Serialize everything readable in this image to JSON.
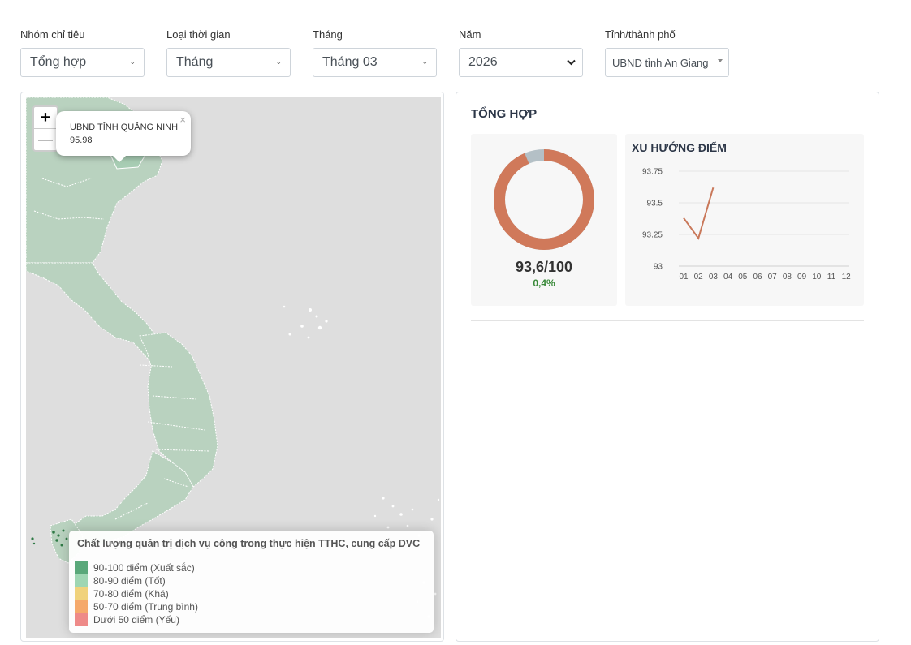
{
  "filters": {
    "group": {
      "label": "Nhóm chỉ tiêu",
      "value": "Tổng hợp"
    },
    "time_type": {
      "label": "Loại thời gian",
      "value": "Tháng"
    },
    "month": {
      "label": "Tháng",
      "value": "Tháng 03"
    },
    "year": {
      "label": "Năm",
      "value": "2026"
    },
    "province": {
      "label": "Tỉnh/thành phố",
      "value": "UBND tỉnh An Giang"
    }
  },
  "map": {
    "zoom_in": "+",
    "zoom_out": "—",
    "popup": {
      "name": "UBND TỈNH QUẢNG NINH",
      "value": "95.98",
      "close": "×"
    },
    "legend": {
      "title": "Chất lượng quản trị dịch vụ công trong thực hiện TTHC, cung cấp DVC",
      "items": [
        {
          "label": "90-100 điểm (Xuất sắc)",
          "color": "#5aa87a"
        },
        {
          "label": "80-90 điểm (Tốt)",
          "color": "#9fd6b3"
        },
        {
          "label": "70-80 điểm (Khá)",
          "color": "#f0d27c"
        },
        {
          "label": "50-70 điểm (Trung bình)",
          "color": "#f5a96b"
        },
        {
          "label": "Dưới 50 điểm (Yếu)",
          "color": "#ee8a88"
        }
      ]
    },
    "land_color": "#b9d2bf",
    "sea_color": "#dedede"
  },
  "summary": {
    "title": "TỔNG HỢP",
    "score": "93,6/100",
    "delta": "0,4%",
    "donut_fraction": 0.936,
    "donut_color": "#d0795a",
    "donut_rest_color": "#b4c0c6"
  },
  "chart_data": {
    "type": "line",
    "title": "XU HƯỚNG ĐIỂM",
    "categories": [
      "01",
      "02",
      "03",
      "04",
      "05",
      "06",
      "07",
      "08",
      "09",
      "10",
      "11",
      "12"
    ],
    "series": [
      {
        "values": [
          93.38,
          93.22,
          93.62,
          null,
          null,
          null,
          null,
          null,
          null,
          null,
          null,
          null
        ]
      }
    ],
    "yticks": [
      "93.75",
      "93.5",
      "93.25",
      "93"
    ],
    "ylim": [
      93,
      93.75
    ],
    "color": "#c9785a",
    "grid": true
  }
}
